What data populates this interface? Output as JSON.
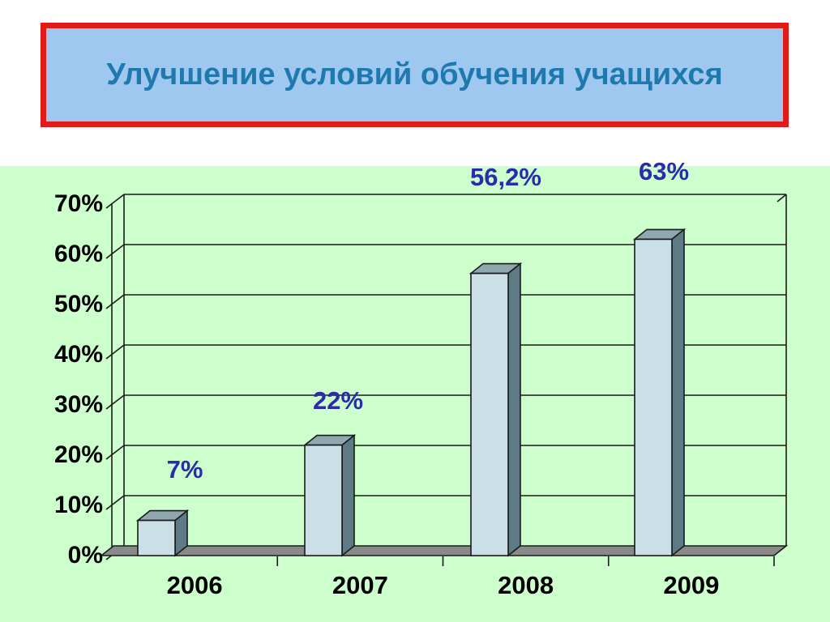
{
  "slide": {
    "background_color": "#FFFFFF"
  },
  "title": {
    "text": "Улучшение условий обучения учащихся",
    "text_color": "#1E79AE",
    "box_fill": "#9FC8F0",
    "border_color": "#E31A1A"
  },
  "chart_data": {
    "type": "bar",
    "style": "3d-column",
    "title": "",
    "categories": [
      "2006",
      "2007",
      "2008",
      "2009"
    ],
    "values": [
      7,
      22,
      56.2,
      63
    ],
    "data_labels": [
      "7%",
      "22%",
      "56,2%",
      "63%"
    ],
    "y_axis": {
      "ticks": [
        "0%",
        "10%",
        "20%",
        "30%",
        "40%",
        "50%",
        "60%",
        "70%"
      ],
      "min": 0,
      "max": 70,
      "step": 10
    },
    "xlabel": "",
    "ylabel": "",
    "grid": true,
    "legend": false,
    "colors": {
      "plot_bg": "#CCFFCC",
      "bar_front": "#CBE0E6",
      "bar_side": "#5E7B85",
      "bar_top": "#8FA7AF",
      "floor": "#8A8A8A",
      "line": "#1A1A1A",
      "axis_text": "#000000",
      "data_label_text": "#2B2BAE"
    }
  }
}
